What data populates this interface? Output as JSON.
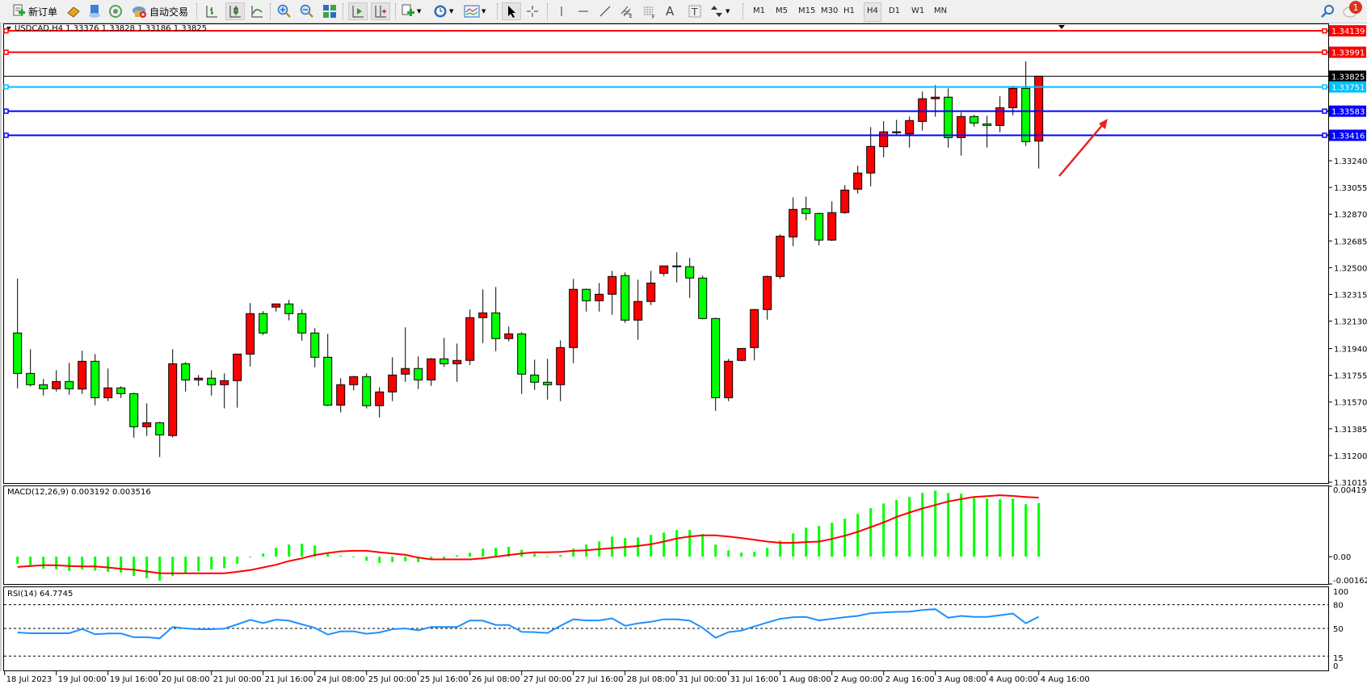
{
  "toolbar": {
    "new_order_label": "新订单",
    "auto_trading_label": "自动交易",
    "icons": [
      "new-order-icon",
      "gold-icon",
      "market-watch-icon",
      "signals-icon",
      "auto-trading-icon",
      "bar-chart-icon",
      "candlestick-icon",
      "line-chart-icon",
      "zoom-in-icon",
      "zoom-out-icon",
      "tile-windows-icon",
      "autoscroll-icon",
      "chart-shift-icon",
      "new-chart-icon",
      "periods-icon",
      "indicators-icon",
      "cursor-icon",
      "crosshair-icon",
      "vertical-line-icon",
      "horizontal-line-icon",
      "trendline-icon",
      "equidistant-channel-icon",
      "fibonacci-icon",
      "text-icon",
      "text-label-icon",
      "arrows-icon"
    ],
    "timeframes": [
      "M1",
      "M5",
      "M15",
      "M30",
      "H1",
      "H4",
      "D1",
      "W1",
      "MN"
    ],
    "active_timeframe": "H4",
    "notification_count": "1"
  },
  "chart": {
    "header": "USDCAD,H4  1.33376 1.33828 1.33186 1.33825",
    "symbol": "USDCAD",
    "period": "H4",
    "colors": {
      "bull": "#ff0000",
      "bear": "#00ff00",
      "macd_hist": "#00ff00",
      "macd_signal": "#ff0000",
      "rsi": "#1e90ff"
    },
    "price_ticks": [
      "1.33240",
      "1.33055",
      "1.32870",
      "1.32685",
      "1.32500",
      "1.32315",
      "1.32130",
      "1.31940",
      "1.31755",
      "1.31570",
      "1.31385",
      "1.31200",
      "1.31015"
    ],
    "levels": [
      {
        "price": "1.34139",
        "color": "#ff0000"
      },
      {
        "price": "1.33991",
        "color": "#ff0000"
      },
      {
        "price": "1.33825",
        "color": "#000000"
      },
      {
        "price": "1.33751",
        "color": "#00bfff"
      },
      {
        "price": "1.33583",
        "color": "#0000ff"
      },
      {
        "price": "1.33416",
        "color": "#0000ff"
      }
    ],
    "time_labels": [
      "18 Jul 2023",
      "19 Jul 00:00",
      "19 Jul 16:00",
      "20 Jul 08:00",
      "21 Jul 00:00",
      "21 Jul 16:00",
      "24 Jul 08:00",
      "25 Jul 00:00",
      "25 Jul 16:00",
      "26 Jul 08:00",
      "27 Jul 00:00",
      "27 Jul 16:00",
      "28 Jul 08:00",
      "31 Jul 00:00",
      "31 Jul 16:00",
      "1 Aug 08:00",
      "2 Aug 00:00",
      "2 Aug 16:00",
      "3 Aug 08:00",
      "4 Aug 00:00",
      "4 Aug 16:00"
    ],
    "macd_label": "MACD(12,26,9) 0.003192 0.003516",
    "macd_ticks": [
      "0.004195",
      "0.00",
      "-0.001625"
    ],
    "rsi_label": "RSI(14) 64.7745",
    "rsi_ticks": [
      "100",
      "80",
      "50",
      "15",
      "0"
    ]
  },
  "chart_data": {
    "type": "candlestick",
    "ohlc": [
      [
        1.32048,
        1.32424,
        1.31665,
        1.31768
      ],
      [
        1.31768,
        1.31936,
        1.31677,
        1.3169
      ],
      [
        1.3169,
        1.31729,
        1.31615,
        1.31662
      ],
      [
        1.31662,
        1.3179,
        1.31643,
        1.31712
      ],
      [
        1.31712,
        1.31841,
        1.31621,
        1.31662
      ],
      [
        1.3166,
        1.31925,
        1.31626,
        1.31852
      ],
      [
        1.31852,
        1.31902,
        1.31548,
        1.316
      ],
      [
        1.316,
        1.31802,
        1.31576,
        1.31668
      ],
      [
        1.31668,
        1.31679,
        1.31598,
        1.31628
      ],
      [
        1.31628,
        1.31634,
        1.31324,
        1.31399
      ],
      [
        1.31399,
        1.31561,
        1.31336,
        1.31427
      ],
      [
        1.31427,
        1.31433,
        1.3119,
        1.31343
      ],
      [
        1.31338,
        1.31936,
        1.31324,
        1.31835
      ],
      [
        1.31835,
        1.31846,
        1.31643,
        1.31723
      ],
      [
        1.31723,
        1.31757,
        1.31682,
        1.31735
      ],
      [
        1.31735,
        1.3179,
        1.31615,
        1.3169
      ],
      [
        1.3169,
        1.31768,
        1.31526,
        1.31718
      ],
      [
        1.31718,
        1.31902,
        1.31531,
        1.31902
      ],
      [
        1.31902,
        1.32255,
        1.31816,
        1.32182
      ],
      [
        1.32182,
        1.32199,
        1.32034,
        1.32048
      ],
      [
        1.32227,
        1.32249,
        1.32196,
        1.32249
      ],
      [
        1.32249,
        1.32277,
        1.32135,
        1.32182
      ],
      [
        1.32182,
        1.3221,
        1.31995,
        1.32048
      ],
      [
        1.32048,
        1.32081,
        1.31811,
        1.3188
      ],
      [
        1.3188,
        1.32042,
        1.31542,
        1.31548
      ],
      [
        1.31548,
        1.31735,
        1.31498,
        1.3169
      ],
      [
        1.3169,
        1.31751,
        1.31651,
        1.31746
      ],
      [
        1.31746,
        1.31768,
        1.31526,
        1.31545
      ],
      [
        1.31545,
        1.31673,
        1.31464,
        1.3164
      ],
      [
        1.3164,
        1.3188,
        1.31576,
        1.31757
      ],
      [
        1.31763,
        1.32087,
        1.3171,
        1.31802
      ],
      [
        1.31802,
        1.31886,
        1.3166,
        1.31723
      ],
      [
        1.31723,
        1.31874,
        1.31682,
        1.31869
      ],
      [
        1.31869,
        1.32014,
        1.31813,
        1.31835
      ],
      [
        1.31835,
        1.31975,
        1.3171,
        1.31858
      ],
      [
        1.31858,
        1.3221,
        1.31827,
        1.32154
      ],
      [
        1.32154,
        1.3235,
        1.31978,
        1.32187
      ],
      [
        1.32187,
        1.32366,
        1.31922,
        1.32009
      ],
      [
        1.32009,
        1.32092,
        1.3199,
        1.32042
      ],
      [
        1.32042,
        1.32053,
        1.31626,
        1.31763
      ],
      [
        1.31757,
        1.31863,
        1.31654,
        1.31707
      ],
      [
        1.31707,
        1.31869,
        1.31587,
        1.3169
      ],
      [
        1.3169,
        1.31997,
        1.31576,
        1.31947
      ],
      [
        1.31947,
        1.32422,
        1.31839,
        1.3235
      ],
      [
        1.3235,
        1.32355,
        1.32196,
        1.32271
      ],
      [
        1.32271,
        1.32394,
        1.32196,
        1.32316
      ],
      [
        1.32316,
        1.32478,
        1.32174,
        1.32439
      ],
      [
        1.32445,
        1.32467,
        1.32118,
        1.32137
      ],
      [
        1.32137,
        1.32417,
        1.32001,
        1.32266
      ],
      [
        1.32266,
        1.32478,
        1.32241,
        1.32394
      ],
      [
        1.32461,
        1.32512,
        1.32442,
        1.32512
      ],
      [
        1.32512,
        1.32607,
        1.32398,
        1.32507
      ],
      [
        1.32507,
        1.32568,
        1.32291,
        1.32428
      ],
      [
        1.32428,
        1.32445,
        1.32143,
        1.32148
      ],
      [
        1.32148,
        1.32154,
        1.31509,
        1.316
      ],
      [
        1.316,
        1.31869,
        1.31576,
        1.31852
      ],
      [
        1.31858,
        1.31941,
        1.31852,
        1.31941
      ],
      [
        1.31947,
        1.32215,
        1.31858,
        1.3221
      ],
      [
        1.3221,
        1.32445,
        1.3214,
        1.32439
      ],
      [
        1.32439,
        1.3273,
        1.32422,
        1.32718
      ],
      [
        1.32713,
        1.32987,
        1.32649,
        1.32903
      ],
      [
        1.32908,
        1.32992,
        1.32828,
        1.32875
      ],
      [
        1.32875,
        1.32881,
        1.32655,
        1.32691
      ],
      [
        1.32691,
        1.32959,
        1.32685,
        1.32881
      ],
      [
        1.32881,
        1.33071,
        1.32873,
        1.33037
      ],
      [
        1.33043,
        1.33205,
        1.33013,
        1.33155
      ],
      [
        1.33155,
        1.33473,
        1.33063,
        1.33339
      ],
      [
        1.33337,
        1.33514,
        1.33264,
        1.3344
      ],
      [
        1.3344,
        1.33523,
        1.33421,
        1.33434
      ],
      [
        1.33426,
        1.33546,
        1.33331,
        1.33518
      ],
      [
        1.33512,
        1.33719,
        1.33449,
        1.33669
      ],
      [
        1.33669,
        1.33764,
        1.33544,
        1.3368
      ],
      [
        1.3368,
        1.33741,
        1.33331,
        1.334
      ],
      [
        1.334,
        1.33574,
        1.33275,
        1.33546
      ],
      [
        1.33546,
        1.33557,
        1.33476,
        1.33501
      ],
      [
        1.33495,
        1.33551,
        1.33331,
        1.33484
      ],
      [
        1.33484,
        1.33686,
        1.33437,
        1.33607
      ],
      [
        1.33607,
        1.33758,
        1.33555,
        1.33741
      ],
      [
        1.33741,
        1.33928,
        1.33342,
        1.33372
      ],
      [
        1.33376,
        1.33828,
        1.33186,
        1.33825
      ]
    ],
    "price_range": [
      1.3101,
      1.3418
    ],
    "macd": {
      "range": [
        -0.001625,
        0.004195
      ],
      "main": [
        -0.00042,
        -0.0005,
        -0.00071,
        -0.00075,
        -0.00085,
        -0.00075,
        -0.00083,
        -0.0009,
        -0.00095,
        -0.00114,
        -0.00128,
        -0.00143,
        -0.00114,
        -0.00095,
        -0.00085,
        -0.00075,
        -0.00066,
        -0.00042,
        -5e-05,
        0.00019,
        0.00053,
        0.00072,
        0.00077,
        0.00067,
        0.00019,
        6e-05,
        2e-05,
        -0.00024,
        -0.00037,
        -0.00032,
        -0.00027,
        -0.00032,
        -0.00018,
        -0.00013,
        8e-05,
        0.00024,
        0.00048,
        0.00053,
        0.00059,
        0.00041,
        0.00019,
        3e-05,
        0.0001,
        0.00048,
        0.00072,
        0.00091,
        0.0012,
        0.00111,
        0.00115,
        0.0013,
        0.00144,
        0.00159,
        0.00159,
        0.00135,
        0.00072,
        0.00038,
        0.00024,
        0.00029,
        0.00053,
        0.00096,
        0.00139,
        0.00173,
        0.00183,
        0.00202,
        0.00226,
        0.00255,
        0.00289,
        0.00317,
        0.00337,
        0.00356,
        0.0038,
        0.00394,
        0.0038,
        0.00375,
        0.00351,
        0.00346,
        0.00342,
        0.00346,
        0.00313,
        0.003192
      ],
      "signal": [
        -0.00061,
        -0.00055,
        -0.00051,
        -0.00051,
        -0.00055,
        -0.00058,
        -0.00058,
        -0.00064,
        -0.00072,
        -0.00077,
        -0.00088,
        -0.00098,
        -0.00099,
        -0.00099,
        -0.00099,
        -0.00099,
        -0.00099,
        -0.0009,
        -0.0008,
        -0.00064,
        -0.00048,
        -0.00026,
        -0.0001,
        0.0001,
        0.00022,
        0.00032,
        0.00035,
        0.00035,
        0.00026,
        0.00019,
        0.00011,
        -5e-05,
        -0.00016,
        -0.00016,
        -0.00016,
        -0.00016,
        -0.0001,
        0.0,
        0.0001,
        0.00019,
        0.00026,
        0.00026,
        0.00029,
        0.00035,
        0.00038,
        0.00045,
        0.00051,
        0.00058,
        0.00064,
        0.00074,
        0.0009,
        0.00109,
        0.0012,
        0.00127,
        0.00127,
        0.0012,
        0.00111,
        0.00101,
        0.0009,
        0.00083,
        0.00083,
        0.00087,
        0.0009,
        0.00106,
        0.00125,
        0.00148,
        0.00176,
        0.00204,
        0.00237,
        0.00263,
        0.00287,
        0.00308,
        0.00329,
        0.00343,
        0.00356,
        0.00361,
        0.00366,
        0.00362,
        0.00356,
        0.003516
      ]
    },
    "rsi": {
      "range": [
        0,
        100
      ],
      "levels": [
        80,
        50,
        15
      ],
      "values": [
        44.9,
        43.9,
        43.9,
        43.9,
        43.9,
        49.3,
        42.6,
        43.6,
        43.6,
        38.9,
        38.9,
        37.5,
        51.7,
        50.0,
        49.0,
        49.0,
        49.7,
        55.1,
        60.8,
        56.7,
        61.1,
        59.8,
        55.1,
        50.7,
        42.2,
        46.3,
        46.3,
        43.3,
        44.9,
        49.0,
        50.0,
        47.6,
        51.7,
        51.7,
        51.7,
        60.1,
        59.8,
        54.4,
        54.4,
        45.6,
        45.3,
        44.3,
        53.4,
        61.5,
        60.1,
        60.1,
        62.8,
        53.4,
        56.4,
        58.4,
        61.5,
        61.5,
        59.8,
        50.7,
        38.2,
        45.3,
        47.3,
        52.4,
        57.4,
        62.1,
        64.2,
        64.5,
        60.1,
        62.1,
        64.2,
        65.8,
        69.2,
        70.2,
        70.9,
        71.2,
        73.3,
        74.3,
        63.5,
        65.8,
        64.5,
        64.5,
        66.5,
        68.9,
        56.4,
        64.7745
      ]
    }
  }
}
